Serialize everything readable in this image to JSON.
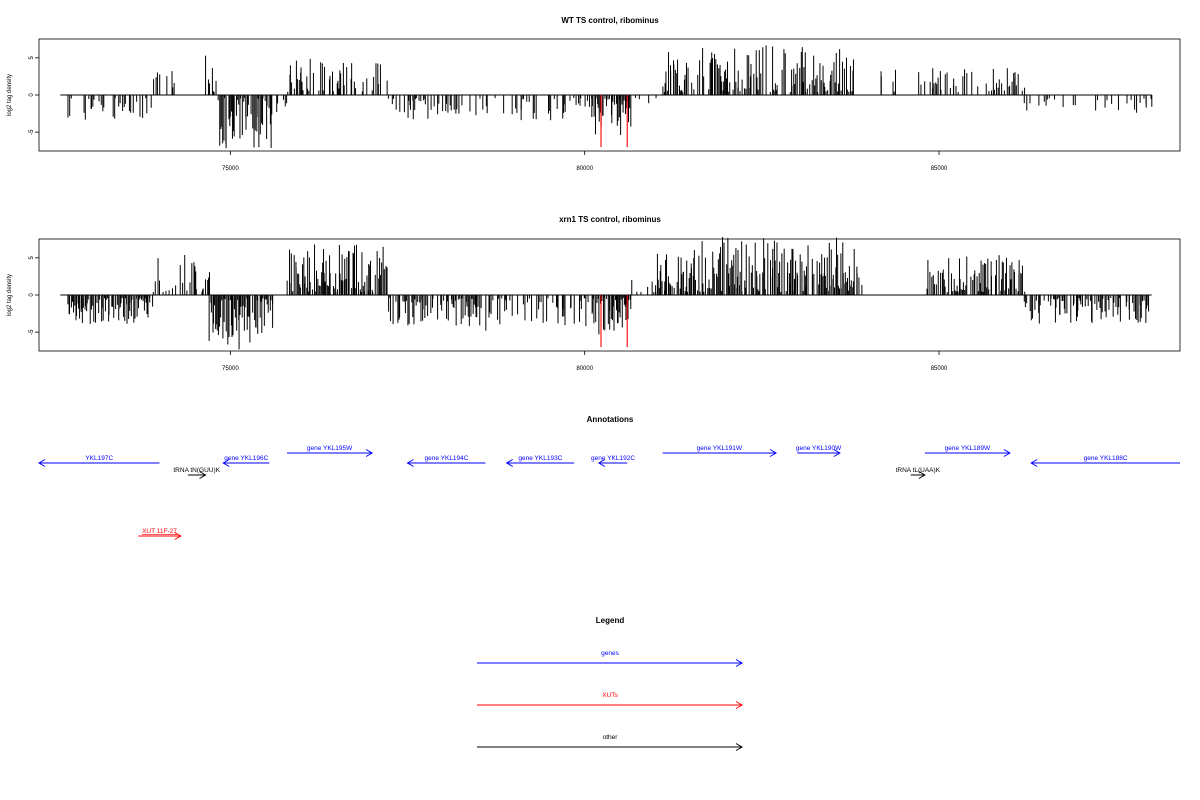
{
  "colors": {
    "genes": "#0000ff",
    "xuts": "#ff0000",
    "other": "#000000",
    "bars": "#000000",
    "highlight": "#ff0000"
  },
  "chart_data": [
    {
      "type": "bar",
      "title": "WT TS control, ribominus",
      "ylabel": "log2 tag density",
      "xlim": [
        72300,
        88400
      ],
      "ylim": [
        -7,
        7
      ],
      "x_ticks": [
        75000,
        80000,
        85000
      ],
      "y_ticks": [
        -5,
        0,
        5
      ],
      "grid": false,
      "seed": 7,
      "segments": [
        {
          "start": 72700,
          "end": 73900,
          "sign": -1,
          "density": 0.35,
          "max": 3
        },
        {
          "start": 73900,
          "end": 74200,
          "sign": 1,
          "density": 0.25,
          "max": 3
        },
        {
          "start": 74650,
          "end": 74800,
          "sign": 1,
          "density": 0.5,
          "max": 5.5
        },
        {
          "start": 74800,
          "end": 75600,
          "sign": -1,
          "density": 0.85,
          "max": 7
        },
        {
          "start": 75600,
          "end": 75800,
          "sign": -1,
          "density": 0.3,
          "max": 2
        },
        {
          "start": 75800,
          "end": 77200,
          "sign": 1,
          "density": 0.5,
          "max": 4.5
        },
        {
          "start": 77200,
          "end": 80100,
          "sign": -1,
          "density": 0.3,
          "max": 3
        },
        {
          "start": 80100,
          "end": 80650,
          "sign": -1,
          "density": 0.9,
          "max": 5
        },
        {
          "start": 80700,
          "end": 81000,
          "sign": -1,
          "density": 0.2,
          "max": 1
        },
        {
          "start": 81100,
          "end": 83800,
          "sign": 1,
          "density": 0.65,
          "max": 6.5
        },
        {
          "start": 84100,
          "end": 84400,
          "sign": 1,
          "density": 0.2,
          "max": 3
        },
        {
          "start": 84700,
          "end": 86200,
          "sign": 1,
          "density": 0.4,
          "max": 3.5
        },
        {
          "start": 86200,
          "end": 88000,
          "sign": -1,
          "density": 0.18,
          "max": 2
        }
      ],
      "highlights": [
        {
          "x": 80230,
          "values": [
            -7,
            -5.8
          ]
        },
        {
          "x": 80600,
          "values": [
            -7,
            -5.9
          ]
        }
      ]
    },
    {
      "type": "bar",
      "title": "xrn1 TS control, ribominus",
      "ylabel": "log2 tag density",
      "xlim": [
        72300,
        88400
      ],
      "ylim": [
        -7,
        7
      ],
      "x_ticks": [
        75000,
        80000,
        85000
      ],
      "y_ticks": [
        -5,
        0,
        5
      ],
      "grid": false,
      "seed": 23,
      "segments": [
        {
          "start": 72700,
          "end": 73900,
          "sign": -1,
          "density": 0.85,
          "max": 3.5
        },
        {
          "start": 73900,
          "end": 74700,
          "sign": 1,
          "density": 0.45,
          "max": 5
        },
        {
          "start": 74700,
          "end": 75600,
          "sign": -1,
          "density": 0.9,
          "max": 7
        },
        {
          "start": 75800,
          "end": 77200,
          "sign": 1,
          "density": 0.85,
          "max": 6.5
        },
        {
          "start": 77200,
          "end": 78500,
          "sign": -1,
          "density": 0.7,
          "max": 4
        },
        {
          "start": 78500,
          "end": 80100,
          "sign": -1,
          "density": 0.5,
          "max": 4.5
        },
        {
          "start": 80100,
          "end": 80650,
          "sign": -1,
          "density": 0.9,
          "max": 5
        },
        {
          "start": 80650,
          "end": 81000,
          "sign": 1,
          "density": 0.3,
          "max": 2
        },
        {
          "start": 81000,
          "end": 83900,
          "sign": 1,
          "density": 0.85,
          "max": 7.5
        },
        {
          "start": 84800,
          "end": 86200,
          "sign": 1,
          "density": 0.75,
          "max": 5
        },
        {
          "start": 86200,
          "end": 88000,
          "sign": -1,
          "density": 0.65,
          "max": 3.5
        }
      ],
      "highlights": [
        {
          "x": 80230,
          "values": [
            -7,
            -5.8
          ]
        },
        {
          "x": 80600,
          "values": [
            -7,
            -5.9
          ]
        }
      ]
    }
  ],
  "annotations": {
    "title": "Annotations",
    "features": [
      {
        "label": "YKL197C",
        "start": 72300,
        "end": 74000,
        "strand": "-",
        "kind": "gene",
        "row": 1
      },
      {
        "label": "tRNA tN(GUU)K",
        "start": 74400,
        "end": 74650,
        "strand": "+",
        "kind": "other",
        "row": 2
      },
      {
        "label": "gene YKL196C",
        "start": 74900,
        "end": 75550,
        "strand": "-",
        "kind": "gene",
        "row": 1
      },
      {
        "label": "gene YKL195W",
        "start": 75800,
        "end": 77000,
        "strand": "+",
        "kind": "gene",
        "row": 0
      },
      {
        "label": "gene YKL194C",
        "start": 77500,
        "end": 78600,
        "strand": "-",
        "kind": "gene",
        "row": 1
      },
      {
        "label": "gene YKL193C",
        "start": 78900,
        "end": 79850,
        "strand": "-",
        "kind": "gene",
        "row": 1
      },
      {
        "label": "gene YKL192C",
        "start": 80200,
        "end": 80600,
        "strand": "-",
        "kind": "gene",
        "row": 1
      },
      {
        "label": "gene YKL191W",
        "start": 81100,
        "end": 82700,
        "strand": "+",
        "kind": "gene",
        "row": 0
      },
      {
        "label": "gene YKL190W",
        "start": 83000,
        "end": 83600,
        "strand": "+",
        "kind": "gene",
        "row": 0
      },
      {
        "label": "tRNA tL(UAA)K",
        "start": 84600,
        "end": 84800,
        "strand": "+",
        "kind": "other",
        "row": 2
      },
      {
        "label": "gene YKL189W",
        "start": 84800,
        "end": 86000,
        "strand": "+",
        "kind": "gene",
        "row": 0
      },
      {
        "label": "gene YKL188C",
        "start": 86300,
        "end": 88400,
        "strand": "-",
        "kind": "gene",
        "row": 1
      },
      {
        "label": "XUT 11F-27",
        "start": 73700,
        "end": 74300,
        "strand": "+",
        "kind": "xut",
        "row": 3
      }
    ]
  },
  "legend": {
    "title": "Legend",
    "items": [
      {
        "label": "genes",
        "kind": "gene"
      },
      {
        "label": "XUTs",
        "kind": "xut"
      },
      {
        "label": "other",
        "kind": "other"
      }
    ]
  }
}
